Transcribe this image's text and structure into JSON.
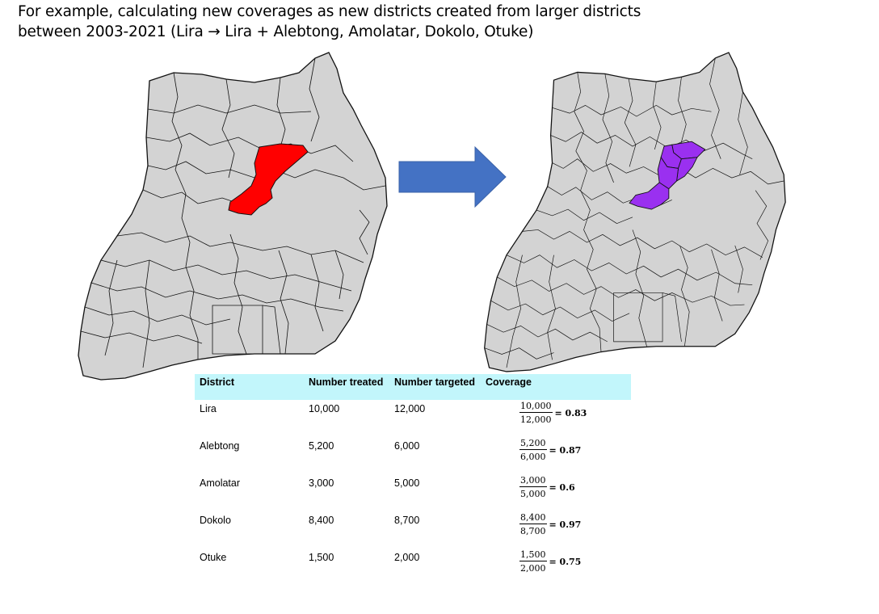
{
  "title": {
    "line1": "For example, calculating new coverages as new districts created from larger districts",
    "line2": "between 2003-2021 (Lira → Lira + Alebtong, Amolatar, Dokolo, Otuke)"
  },
  "maps": {
    "before_highlight_color": "#ff0000",
    "after_highlight_color": "#9a30f0",
    "district_fill": "#d3d3d3",
    "arrow_color": "#4472c4"
  },
  "table": {
    "header_bg": "#c2f6fb",
    "headers": [
      "District",
      "Number treated",
      "Number targeted",
      "Coverage"
    ],
    "rows": [
      {
        "district": "Lira",
        "treated": "10,000",
        "targeted": "12,000",
        "num": "10,000",
        "den": "12,000",
        "coverage": "= 0.83"
      },
      {
        "district": "Alebtong",
        "treated": "5,200",
        "targeted": "6,000",
        "num": "5,200",
        "den": "6,000",
        "coverage": "= 0.87"
      },
      {
        "district": "Amolatar",
        "treated": "3,000",
        "targeted": "5,000",
        "num": "3,000",
        "den": "5,000",
        "coverage": "= 0.6"
      },
      {
        "district": "Dokolo",
        "treated": "8,400",
        "targeted": "8,700",
        "num": "8,400",
        "den": "8,700",
        "coverage": "= 0.97"
      },
      {
        "district": "Otuke",
        "treated": "1,500",
        "targeted": "2,000",
        "num": "1,500",
        "den": "2,000",
        "coverage": "= 0.75"
      }
    ]
  }
}
